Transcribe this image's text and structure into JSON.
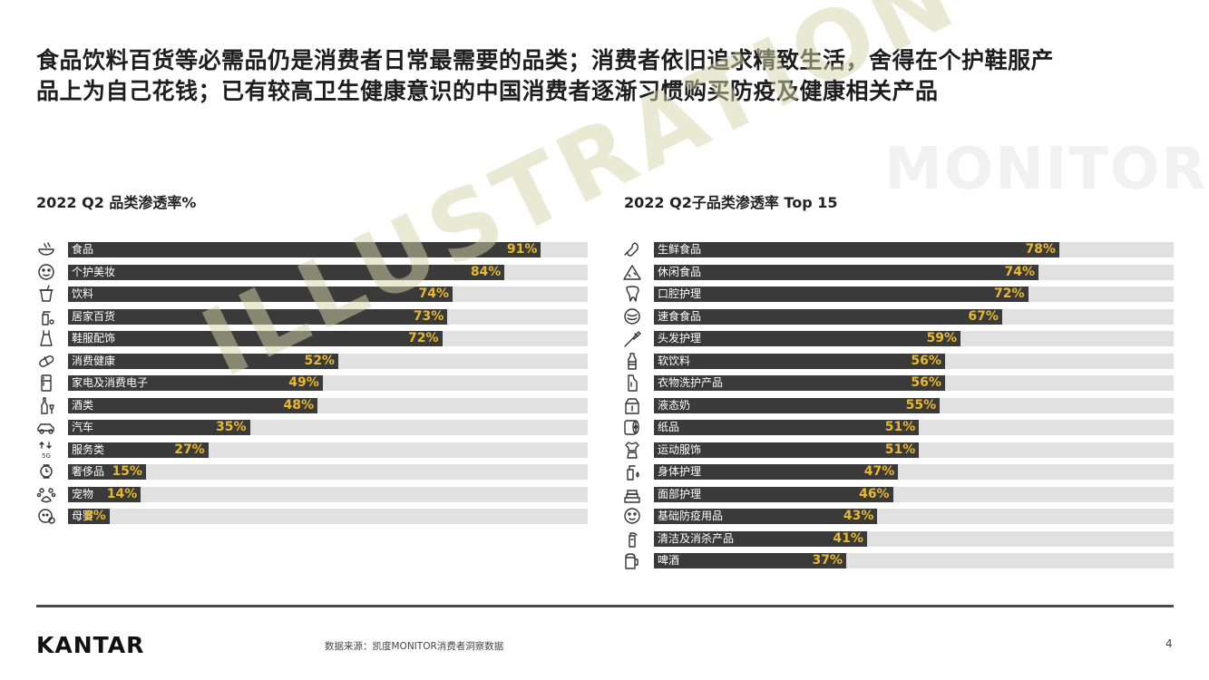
{
  "headline": {
    "line1": "食品饮料百货等必需品仍是消费者日常最需要的品类；消费者依旧追求精致生活，舍得在个护鞋服产",
    "line2": "品上为自己花钱；已有较高卫生健康意识的中国消费者逐渐习惯购买防疫及健康相关产品"
  },
  "watermark": {
    "brand": "MONITOR",
    "illustration": "ILLUSTRATION"
  },
  "footer": {
    "logo": "KANTAR",
    "source": "数据来源：凯度MONITOR消费者洞察数据",
    "page": "4"
  },
  "colors": {
    "bar": "#3a3a3a",
    "track": "#e1e1e1",
    "value_label": "#e8b930"
  },
  "chart_data": [
    {
      "type": "bar",
      "orientation": "horizontal",
      "title": "2022 Q2 品类渗透率%",
      "xlim": [
        0,
        100
      ],
      "categories": [
        "食品",
        "个护美妆",
        "饮料",
        "居家百货",
        "鞋服配饰",
        "消费健康",
        "家电及消费电子",
        "酒类",
        "汽车",
        "服务类",
        "奢侈品",
        "宠物",
        "母婴"
      ],
      "values": [
        91,
        84,
        74,
        73,
        72,
        52,
        49,
        48,
        35,
        27,
        15,
        14,
        8
      ],
      "value_labels": [
        "91%",
        "84%",
        "74%",
        "73%",
        "72%",
        "52%",
        "49%",
        "48%",
        "35%",
        "27%",
        "15%",
        "14%",
        "8%"
      ],
      "icons": [
        "bowl-icon",
        "face-mask-icon",
        "drink-cup-icon",
        "spray-bottle-icon",
        "dress-icon",
        "pill-icon",
        "fridge-icon",
        "wine-bottle-icon",
        "car-icon",
        "service-5g-icon",
        "watch-icon",
        "paw-icon",
        "baby-icon"
      ]
    },
    {
      "type": "bar",
      "orientation": "horizontal",
      "title": "2022 Q2子品类渗透率 Top 15",
      "xlim": [
        0,
        100
      ],
      "categories": [
        "生鲜食品",
        "休闲食品",
        "口腔护理",
        "速食食品",
        "头发护理",
        "软饮料",
        "衣物洗护产品",
        "液态奶",
        "纸品",
        "运动服饰",
        "身体护理",
        "面部护理",
        "基础防疫用品",
        "清洁及消杀产品",
        "啤酒"
      ],
      "values": [
        78,
        74,
        72,
        67,
        59,
        56,
        56,
        55,
        51,
        51,
        47,
        46,
        43,
        41,
        37
      ],
      "value_labels": [
        "78%",
        "74%",
        "72%",
        "67%",
        "59%",
        "56%",
        "56%",
        "55%",
        "51%",
        "51%",
        "47%",
        "46%",
        "43%",
        "41%",
        "37%"
      ],
      "icons": [
        "meat-icon",
        "snack-icon",
        "tooth-icon",
        "noodle-bowl-icon",
        "hair-brush-icon",
        "soda-bottle-icon",
        "detergent-icon",
        "milk-carton-icon",
        "tissue-roll-icon",
        "sportswear-icon",
        "body-lotion-icon",
        "face-cream-icon",
        "face-mask-icon",
        "cleaning-spray-icon",
        "beer-mug-icon"
      ]
    }
  ]
}
